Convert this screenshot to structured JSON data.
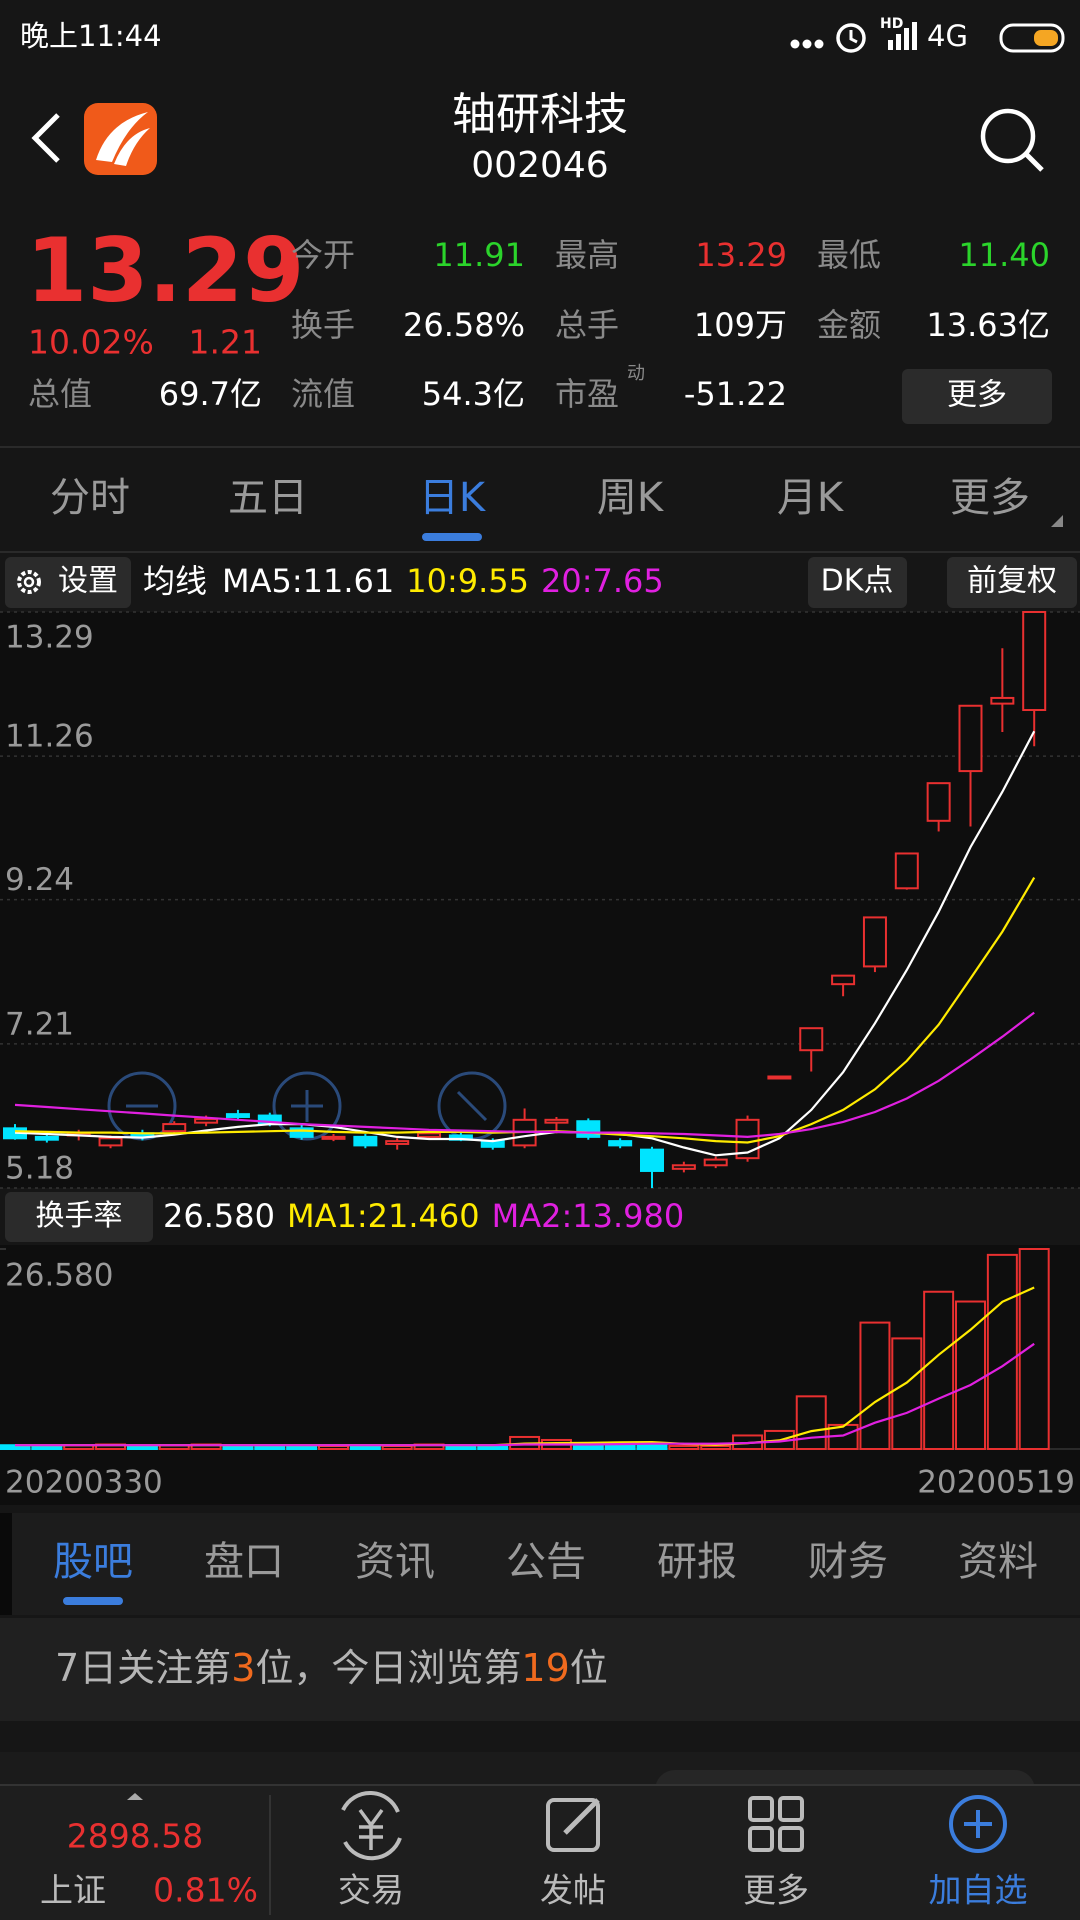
{
  "status": {
    "time": "晚上11:44",
    "hd": "HD",
    "network": "4G"
  },
  "header": {
    "title": "轴研科技",
    "code": "002046"
  },
  "quote": {
    "price": "13.29",
    "change_pct": "10.02%",
    "change": "1.21",
    "stats": [
      {
        "label": "今开",
        "value": "11.91",
        "color": "#2bd42b"
      },
      {
        "label": "最高",
        "value": "13.29",
        "color": "#e93030"
      },
      {
        "label": "最低",
        "value": "11.40",
        "color": "#2bd42b"
      },
      {
        "label": "换手",
        "value": "26.58%",
        "color": "#ffffff"
      },
      {
        "label": "总手",
        "value": "109万",
        "color": "#ffffff"
      },
      {
        "label": "金额",
        "value": "13.63亿",
        "color": "#ffffff"
      },
      {
        "label": "总值",
        "value": "69.7亿",
        "color": "#ffffff"
      },
      {
        "label": "流值",
        "value": "54.3亿",
        "color": "#ffffff"
      },
      {
        "label": "市盈",
        "sup": "动",
        "value": "-51.22",
        "color": "#ffffff"
      }
    ],
    "more": "更多"
  },
  "tabs": {
    "items": [
      "分时",
      "五日",
      "日K",
      "周K",
      "月K",
      "更多"
    ],
    "active": 2
  },
  "kline_toolbar": {
    "settings": "设置",
    "indicator": "均线",
    "dk": "DK点",
    "adjust": "前复权"
  },
  "chart_data": [
    {
      "type": "candlestick",
      "ylim": [
        5.18,
        13.29
      ],
      "yticks": [
        13.29,
        11.26,
        9.24,
        7.21,
        5.18
      ],
      "grid": true,
      "up_color": "#e93030",
      "down_color": "#00e4ff",
      "open": [
        6.02,
        5.9,
        5.92,
        5.78,
        5.95,
        5.98,
        6.1,
        6.22,
        6.2,
        6.02,
        5.88,
        5.9,
        5.8,
        5.9,
        5.92,
        5.84,
        5.78,
        6.1,
        6.12,
        5.84,
        5.72,
        5.45,
        5.5,
        5.6,
        6.75,
        7.12,
        8.05,
        8.3,
        9.4,
        10.35,
        11.05,
        12.0,
        11.91
      ],
      "high": [
        6.08,
        5.95,
        6.0,
        5.92,
        6.0,
        6.12,
        6.2,
        6.28,
        6.24,
        6.08,
        5.94,
        5.94,
        5.88,
        6.0,
        5.96,
        5.88,
        6.3,
        6.18,
        6.16,
        5.88,
        5.76,
        5.55,
        5.62,
        6.2,
        6.75,
        7.43,
        8.17,
        8.99,
        9.89,
        10.88,
        11.97,
        12.78,
        13.29
      ],
      "low": [
        5.86,
        5.82,
        5.85,
        5.74,
        5.85,
        5.95,
        6.05,
        6.14,
        6.05,
        5.86,
        5.84,
        5.74,
        5.72,
        5.86,
        5.84,
        5.72,
        5.74,
        5.95,
        5.86,
        5.74,
        5.18,
        5.4,
        5.46,
        5.55,
        6.75,
        6.82,
        7.88,
        8.22,
        9.38,
        10.2,
        10.27,
        11.6,
        11.4
      ],
      "close": [
        5.88,
        5.86,
        5.95,
        5.88,
        5.9,
        6.08,
        6.15,
        6.18,
        6.08,
        5.9,
        5.9,
        5.78,
        5.84,
        5.95,
        5.86,
        5.76,
        6.14,
        6.14,
        5.9,
        5.78,
        5.42,
        5.5,
        5.58,
        6.14,
        6.75,
        7.43,
        8.17,
        8.99,
        9.89,
        10.88,
        11.97,
        12.08,
        13.29
      ],
      "series": [
        {
          "name": "MA5:11.61",
          "color": "#ffffff",
          "values": [
            5.96,
            5.94,
            5.92,
            5.9,
            5.89,
            5.93,
            5.99,
            6.04,
            6.08,
            6.08,
            6.04,
            5.97,
            5.9,
            5.87,
            5.87,
            5.84,
            5.91,
            5.97,
            5.96,
            5.94,
            5.88,
            5.75,
            5.64,
            5.68,
            5.88,
            6.28,
            6.81,
            7.5,
            8.25,
            9.07,
            9.98,
            10.76,
            11.61
          ]
        },
        {
          "name": "10:9.55",
          "color": "#ffeb00",
          "values": [
            5.98,
            5.97,
            5.96,
            5.96,
            5.95,
            5.95,
            5.96,
            5.97,
            5.98,
            5.99,
            5.97,
            5.96,
            5.96,
            5.97,
            5.97,
            5.96,
            5.97,
            5.98,
            5.96,
            5.93,
            5.91,
            5.88,
            5.84,
            5.82,
            5.91,
            6.08,
            6.28,
            6.57,
            6.97,
            7.48,
            8.13,
            8.79,
            9.55
          ]
        },
        {
          "name": "20:7.65",
          "color": "#e020e0",
          "values": [
            6.35,
            6.32,
            6.29,
            6.26,
            6.23,
            6.2,
            6.17,
            6.14,
            6.11,
            6.08,
            6.06,
            6.04,
            6.02,
            6.0,
            5.99,
            5.98,
            5.97,
            5.97,
            5.96,
            5.96,
            5.95,
            5.94,
            5.92,
            5.9,
            5.94,
            6.01,
            6.11,
            6.25,
            6.44,
            6.69,
            6.99,
            7.31,
            7.65
          ]
        }
      ]
    },
    {
      "type": "bar",
      "title": "换手率",
      "current": "26.580",
      "categories": [
        "20200330",
        null,
        null,
        null,
        null,
        null,
        null,
        null,
        null,
        null,
        null,
        null,
        null,
        null,
        null,
        null,
        null,
        null,
        null,
        null,
        null,
        null,
        null,
        null,
        null,
        null,
        null,
        null,
        null,
        null,
        null,
        null,
        "20200519"
      ],
      "values": [
        0.5,
        0.4,
        0.5,
        0.6,
        0.4,
        0.5,
        0.6,
        0.5,
        0.5,
        0.4,
        0.4,
        0.5,
        0.4,
        0.6,
        0.5,
        0.5,
        1.6,
        1.2,
        0.6,
        0.5,
        0.7,
        0.4,
        0.4,
        1.8,
        2.4,
        7.0,
        3.2,
        16.8,
        14.7,
        20.9,
        19.6,
        25.8,
        26.58
      ],
      "ylim": [
        0,
        26.58
      ],
      "yticks": [
        {
          "value": 26.58,
          "label": "26.580"
        }
      ],
      "series": [
        {
          "name": "MA1:21.460",
          "color": "#ffeb00",
          "values": [
            0.5,
            0.5,
            0.5,
            0.5,
            0.5,
            0.5,
            0.5,
            0.5,
            0.5,
            0.5,
            0.5,
            0.5,
            0.5,
            0.5,
            0.5,
            0.5,
            0.72,
            0.78,
            0.82,
            0.88,
            0.92,
            0.68,
            0.56,
            0.78,
            1.14,
            2.38,
            2.98,
            6.24,
            8.82,
            12.52,
            15.84,
            19.56,
            21.46
          ]
        },
        {
          "name": "MA2:13.980",
          "color": "#e020e0",
          "values": [
            0.5,
            0.5,
            0.5,
            0.5,
            0.5,
            0.5,
            0.5,
            0.5,
            0.5,
            0.5,
            0.5,
            0.5,
            0.5,
            0.5,
            0.5,
            0.5,
            0.6,
            0.6,
            0.6,
            0.65,
            0.7,
            0.7,
            0.7,
            0.8,
            1.0,
            1.5,
            1.8,
            3.5,
            4.8,
            6.7,
            8.5,
            11.0,
            13.98
          ]
        }
      ]
    }
  ],
  "section_tabs": {
    "items": [
      "股吧",
      "盘口",
      "资讯",
      "公告",
      "研报",
      "财务",
      "资料"
    ],
    "active": 0
  },
  "notice": {
    "parts": [
      {
        "text": "7日关注第"
      },
      {
        "text": "3",
        "highlight": true
      },
      {
        "text": "位，今日浏览第"
      },
      {
        "text": "19",
        "highlight": true
      },
      {
        "text": "位"
      }
    ]
  },
  "bottom_bar": {
    "index": {
      "value": "2898.58",
      "name": "上证",
      "change": "0.81%"
    },
    "nav": [
      "交易",
      "发帖",
      "更多",
      "加自选"
    ],
    "active": 3
  }
}
